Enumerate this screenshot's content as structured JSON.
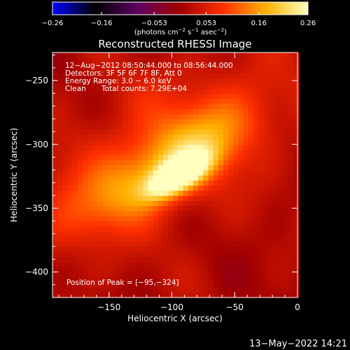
{
  "chart_data": {
    "type": "heatmap",
    "title": "Reconstructed RHESSI Image",
    "xlabel": "Heliocentric X (arcsec)",
    "ylabel": "Heliocentric Y (arcsec)",
    "xlim": [
      -195,
      0
    ],
    "ylim": [
      -420,
      -228
    ],
    "x_ticks": [
      {
        "value": -150,
        "label": "−150"
      },
      {
        "value": -100,
        "label": "−100"
      },
      {
        "value": -50,
        "label": "−50"
      },
      {
        "value": 0,
        "label": "0"
      }
    ],
    "y_ticks": [
      {
        "value": -250,
        "label": "−250"
      },
      {
        "value": -300,
        "label": "−300"
      },
      {
        "value": -350,
        "label": "−350"
      },
      {
        "value": -400,
        "label": "−400"
      }
    ],
    "colorbar": {
      "min": -0.26,
      "max": 0.26,
      "ticks": [
        {
          "value": -0.26,
          "label": "−0.26"
        },
        {
          "value": -0.16,
          "label": "−0.16"
        },
        {
          "value": -0.053,
          "label": "−0.053"
        },
        {
          "value": 0.053,
          "label": "0.053"
        },
        {
          "value": 0.16,
          "label": "0.16"
        },
        {
          "value": 0.26,
          "label": "0.26"
        }
      ],
      "unit_pre": "(photons cm",
      "unit_exp1": "−2",
      "unit_mid": " s",
      "unit_exp2": "−1",
      "unit_mid2": " asec",
      "unit_exp3": "−2",
      "unit_post": ")",
      "colors": [
        "#0000ff",
        "#000000",
        "#600060",
        "#a00000",
        "#ff3000",
        "#ffb000",
        "#ffffc0"
      ]
    },
    "annotations": {
      "line1": "12−Aug−2012 08:50:44.000 to 08:56:44.000",
      "line2": "Detectors: 3F 5F 6F 7F 8F, Att 0",
      "line3": "Energy Range: 3.0 − 6.0 keV",
      "line4_a": "Clean",
      "line4_b": "Total counts: 7.29E+04",
      "peak": "Position of Peak = [−95,−324]"
    },
    "peak": {
      "x": -95,
      "y": -324,
      "value": 0.26
    },
    "emission": {
      "axis_angle_deg": 30,
      "components": [
        {
          "x": -95,
          "y": -324,
          "sigma_major": 18,
          "sigma_minor": 8,
          "amp": 0.26
        },
        {
          "x": -110,
          "y": -320,
          "sigma_major": 55,
          "sigma_minor": 18,
          "amp": 0.12
        },
        {
          "x": -120,
          "y": -310,
          "sigma_major": 85,
          "sigma_minor": 40,
          "amp": 0.06
        },
        {
          "x": -70,
          "y": -290,
          "sigma_major": 30,
          "sigma_minor": 25,
          "amp": 0.04
        }
      ],
      "background": 0.012,
      "pixel_arcsec": 4
    },
    "timestamp": "13−May−2022 14:21"
  }
}
